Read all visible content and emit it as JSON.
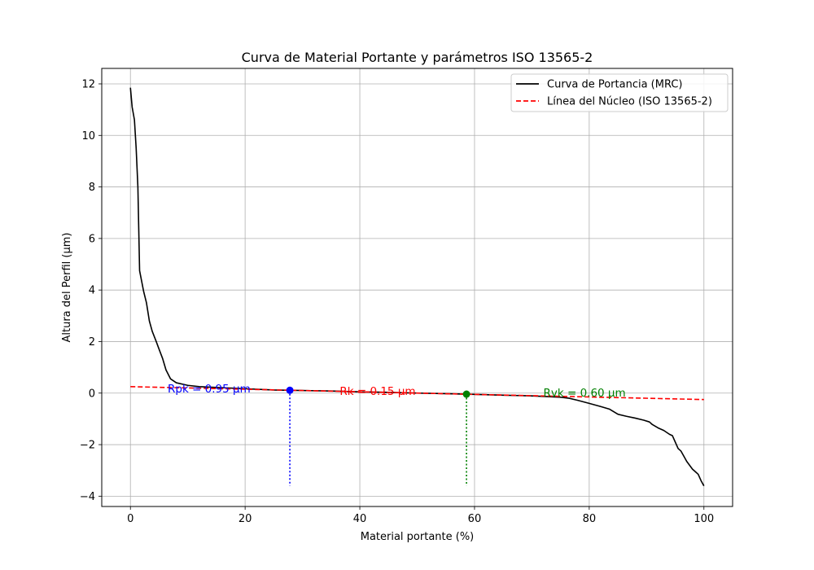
{
  "chart_data": {
    "type": "line",
    "title": "Curva de Material Portante y parámetros ISO 13565-2",
    "xlabel": "Material portante (%)",
    "ylabel": "Altura del Perfil (µm)",
    "xlim": [
      -5,
      105
    ],
    "ylim": [
      -4.4,
      12.6
    ],
    "xticks": [
      0,
      20,
      40,
      60,
      80,
      100
    ],
    "yticks": [
      -4,
      -2,
      0,
      2,
      4,
      6,
      8,
      10,
      12
    ],
    "xtick_labels": [
      "0",
      "20",
      "40",
      "60",
      "80",
      "100"
    ],
    "ytick_labels": [
      "−4",
      "−2",
      "0",
      "2",
      "4",
      "6",
      "8",
      "10",
      "12"
    ],
    "grid": true,
    "legend_position": "upper right",
    "series": [
      {
        "name": "Curva de Portancia (MRC)",
        "style": "solid",
        "color": "#000000",
        "x": [
          0,
          0.3,
          0.7,
          1.0,
          1.3,
          1.6,
          2.3,
          2.8,
          3.3,
          3.8,
          4.5,
          5.0,
          5.6,
          6.2,
          7.0,
          8.0,
          10.0,
          12.0,
          15.0,
          20.0,
          25.0,
          27.8,
          30.0,
          35.0,
          40.0,
          45.0,
          50.0,
          55.0,
          58.6,
          60.0,
          65.0,
          70.0,
          75.0,
          76.5,
          78.0,
          80.0,
          82.0,
          83.5,
          85.0,
          86.5,
          88.0,
          89.5,
          90.5,
          91.0,
          92.0,
          93.0,
          94.0,
          94.5,
          95.0,
          95.5,
          96.0,
          96.5,
          97.0,
          97.5,
          98.0,
          98.5,
          99.0,
          99.5,
          100.0
        ],
        "y": [
          11.85,
          11.1,
          10.6,
          9.5,
          8.0,
          4.75,
          3.95,
          3.5,
          2.8,
          2.4,
          2.0,
          1.7,
          1.35,
          0.9,
          0.55,
          0.4,
          0.3,
          0.25,
          0.22,
          0.17,
          0.12,
          0.11,
          0.1,
          0.08,
          0.05,
          0.03,
          0.0,
          -0.02,
          -0.04,
          -0.05,
          -0.08,
          -0.11,
          -0.16,
          -0.2,
          -0.28,
          -0.4,
          -0.52,
          -0.62,
          -0.82,
          -0.9,
          -0.97,
          -1.05,
          -1.12,
          -1.22,
          -1.35,
          -1.45,
          -1.6,
          -1.65,
          -1.9,
          -2.15,
          -2.25,
          -2.45,
          -2.65,
          -2.8,
          -2.95,
          -3.05,
          -3.15,
          -3.4,
          -3.6
        ]
      },
      {
        "name": "Línea del Núcleo (ISO 13565-2)",
        "style": "dashed",
        "color": "#ff0000",
        "x": [
          0,
          100
        ],
        "y": [
          0.25,
          -0.25
        ]
      }
    ],
    "markers": [
      {
        "x": 27.8,
        "y": 0.11,
        "color": "#0000ff",
        "vline_to": -3.6
      },
      {
        "x": 58.6,
        "y": -0.04,
        "color": "#008000",
        "vline_to": -3.6
      }
    ],
    "annotations": [
      {
        "text": "Rpk = 0.95 µm",
        "x": 6.5,
        "y": 0.15,
        "color": "#0000ff"
      },
      {
        "text": "Rk = 0.15 µm",
        "x": 36.5,
        "y": 0.05,
        "color": "#ff0000"
      },
      {
        "text": "Rvk = 0.60 µm",
        "x": 72.0,
        "y": 0.0,
        "color": "#008000"
      }
    ]
  }
}
